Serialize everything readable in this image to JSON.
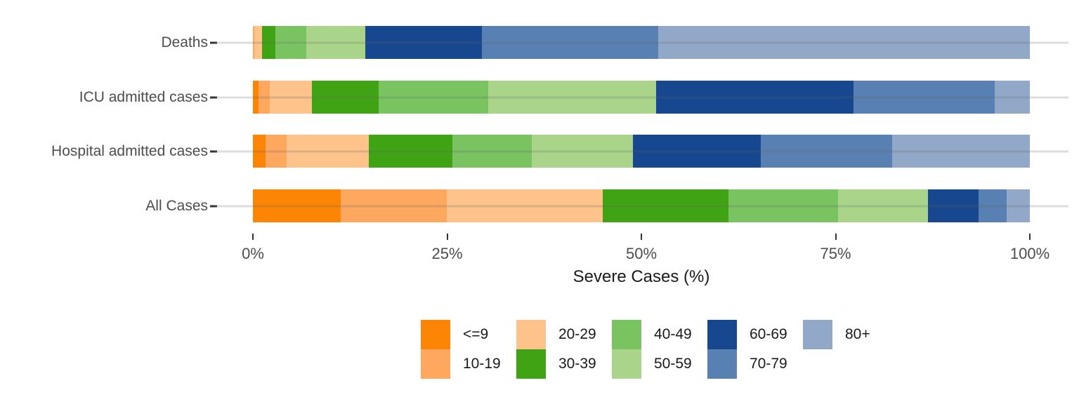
{
  "chart_data": {
    "type": "bar",
    "subtype": "horizontal-stacked-percent",
    "title": "",
    "xlabel": "Severe Cases (%)",
    "ylabel": "",
    "categories": [
      "Deaths",
      "ICU admitted cases",
      "Hospital admitted cases",
      "All Cases"
    ],
    "age_groups": [
      "<=9",
      "10-19",
      "20-29",
      "30-39",
      "40-49",
      "50-59",
      "60-69",
      "70-79",
      "80+"
    ],
    "series": [
      {
        "name": "Deaths",
        "values": [
          0.0,
          0.2,
          1.0,
          1.7,
          4.0,
          7.6,
          15.0,
          22.7,
          47.8
        ]
      },
      {
        "name": "ICU admitted cases",
        "values": [
          0.7,
          1.5,
          5.4,
          8.6,
          14.1,
          21.6,
          25.4,
          18.2,
          4.5
        ]
      },
      {
        "name": "Hospital admitted cases",
        "values": [
          1.6,
          2.7,
          10.6,
          10.8,
          10.2,
          13.0,
          16.5,
          16.9,
          17.7
        ]
      },
      {
        "name": "All Cases",
        "values": [
          11.3,
          13.7,
          20.0,
          16.2,
          14.1,
          11.6,
          6.5,
          3.6,
          3.0
        ]
      }
    ],
    "colors": {
      "<=9": "#FC8505",
      "10-19": "#FDA75F",
      "20-29": "#FDC38A",
      "30-39": "#3FA314",
      "40-49": "#79C361",
      "50-59": "#A9D489",
      "60-69": "#17478F",
      "70-79": "#5880B2",
      "80+": "#92A8C8"
    },
    "xlim": [
      0,
      100
    ],
    "x_ticks": [
      {
        "value": 0,
        "label": "0%"
      },
      {
        "value": 25,
        "label": "25%"
      },
      {
        "value": 50,
        "label": "50%"
      },
      {
        "value": 75,
        "label": "75%"
      },
      {
        "value": 100,
        "label": "100%"
      }
    ],
    "grid": "horizontal category gridlines only, drawn over bars",
    "legend_position": "bottom-center",
    "legend_rows": 2,
    "legend_fill_order": "column-major",
    "text_colors": {
      "axis_text": "#4d4d4d",
      "axis_title": "#1a1a1a",
      "legend_text": "#1a1a1a"
    }
  }
}
